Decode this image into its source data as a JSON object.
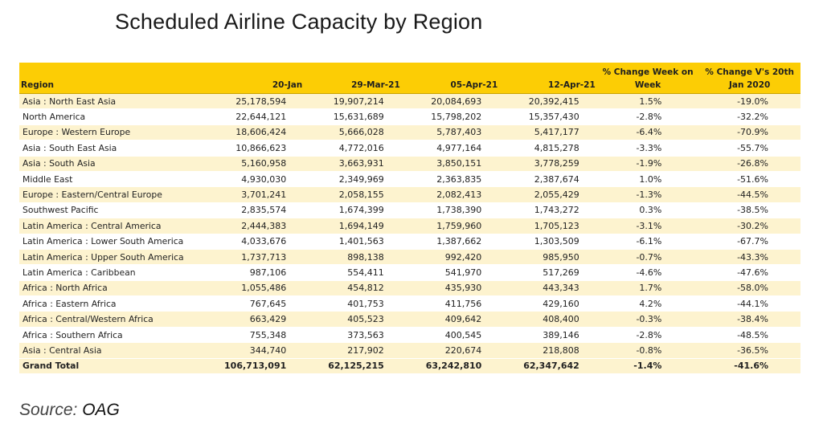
{
  "title": "Scheduled Airline Capacity by Region",
  "table": {
    "headers": {
      "region": "Region",
      "jan20": "20-Jan",
      "mar29": "29-Mar-21",
      "apr05": "05-Apr-21",
      "apr12": "12-Apr-21",
      "wk_top": "% Change Week on",
      "wk_bot": "Week",
      "v20_top": "% Change V's 20th",
      "v20_bot": "Jan 2020"
    },
    "rows": [
      {
        "region": "Asia : North East Asia",
        "jan20": "25,178,594",
        "mar29": "19,907,214",
        "apr05": "20,084,693",
        "apr12": "20,392,415",
        "wk": "1.5%",
        "v20": "-19.0%"
      },
      {
        "region": "North America",
        "jan20": "22,644,121",
        "mar29": "15,631,689",
        "apr05": "15,798,202",
        "apr12": "15,357,430",
        "wk": "-2.8%",
        "v20": "-32.2%"
      },
      {
        "region": "Europe : Western Europe",
        "jan20": "18,606,424",
        "mar29": "5,666,028",
        "apr05": "5,787,403",
        "apr12": "5,417,177",
        "wk": "-6.4%",
        "v20": "-70.9%"
      },
      {
        "region": "Asia : South East Asia",
        "jan20": "10,866,623",
        "mar29": "4,772,016",
        "apr05": "4,977,164",
        "apr12": "4,815,278",
        "wk": "-3.3%",
        "v20": "-55.7%"
      },
      {
        "region": "Asia : South Asia",
        "jan20": "5,160,958",
        "mar29": "3,663,931",
        "apr05": "3,850,151",
        "apr12": "3,778,259",
        "wk": "-1.9%",
        "v20": "-26.8%"
      },
      {
        "region": "Middle East",
        "jan20": "4,930,030",
        "mar29": "2,349,969",
        "apr05": "2,363,835",
        "apr12": "2,387,674",
        "wk": "1.0%",
        "v20": "-51.6%"
      },
      {
        "region": "Europe : Eastern/Central Europe",
        "jan20": "3,701,241",
        "mar29": "2,058,155",
        "apr05": "2,082,413",
        "apr12": "2,055,429",
        "wk": "-1.3%",
        "v20": "-44.5%"
      },
      {
        "region": "Southwest Pacific",
        "jan20": "2,835,574",
        "mar29": "1,674,399",
        "apr05": "1,738,390",
        "apr12": "1,743,272",
        "wk": "0.3%",
        "v20": "-38.5%"
      },
      {
        "region": "Latin America : Central America",
        "jan20": "2,444,383",
        "mar29": "1,694,149",
        "apr05": "1,759,960",
        "apr12": "1,705,123",
        "wk": "-3.1%",
        "v20": "-30.2%"
      },
      {
        "region": "Latin America : Lower South America",
        "jan20": "4,033,676",
        "mar29": "1,401,563",
        "apr05": "1,387,662",
        "apr12": "1,303,509",
        "wk": "-6.1%",
        "v20": "-67.7%"
      },
      {
        "region": "Latin America : Upper South America",
        "jan20": "1,737,713",
        "mar29": "898,138",
        "apr05": "992,420",
        "apr12": "985,950",
        "wk": "-0.7%",
        "v20": "-43.3%"
      },
      {
        "region": "Latin America : Caribbean",
        "jan20": "987,106",
        "mar29": "554,411",
        "apr05": "541,970",
        "apr12": "517,269",
        "wk": "-4.6%",
        "v20": "-47.6%"
      },
      {
        "region": "Africa : North Africa",
        "jan20": "1,055,486",
        "mar29": "454,812",
        "apr05": "435,930",
        "apr12": "443,343",
        "wk": "1.7%",
        "v20": "-58.0%"
      },
      {
        "region": "Africa : Eastern Africa",
        "jan20": "767,645",
        "mar29": "401,753",
        "apr05": "411,756",
        "apr12": "429,160",
        "wk": "4.2%",
        "v20": "-44.1%"
      },
      {
        "region": "Africa : Central/Western Africa",
        "jan20": "663,429",
        "mar29": "405,523",
        "apr05": "409,642",
        "apr12": "408,400",
        "wk": "-0.3%",
        "v20": "-38.4%"
      },
      {
        "region": "Africa : Southern Africa",
        "jan20": "755,348",
        "mar29": "373,563",
        "apr05": "400,545",
        "apr12": "389,146",
        "wk": "-2.8%",
        "v20": "-48.5%"
      },
      {
        "region": "Asia : Central Asia",
        "jan20": "344,740",
        "mar29": "217,902",
        "apr05": "220,674",
        "apr12": "218,808",
        "wk": "-0.8%",
        "v20": "-36.5%"
      }
    ],
    "total": {
      "region": "Grand Total",
      "jan20": "106,713,091",
      "mar29": "62,125,215",
      "apr05": "63,242,810",
      "apr12": "62,347,642",
      "wk": "-1.4%",
      "v20": "-41.6%"
    }
  },
  "source": {
    "prefix": "Source: ",
    "org": "OAG"
  },
  "colors": {
    "header_bg": "#fccd05",
    "stripe_bg": "#fdf3cf"
  }
}
